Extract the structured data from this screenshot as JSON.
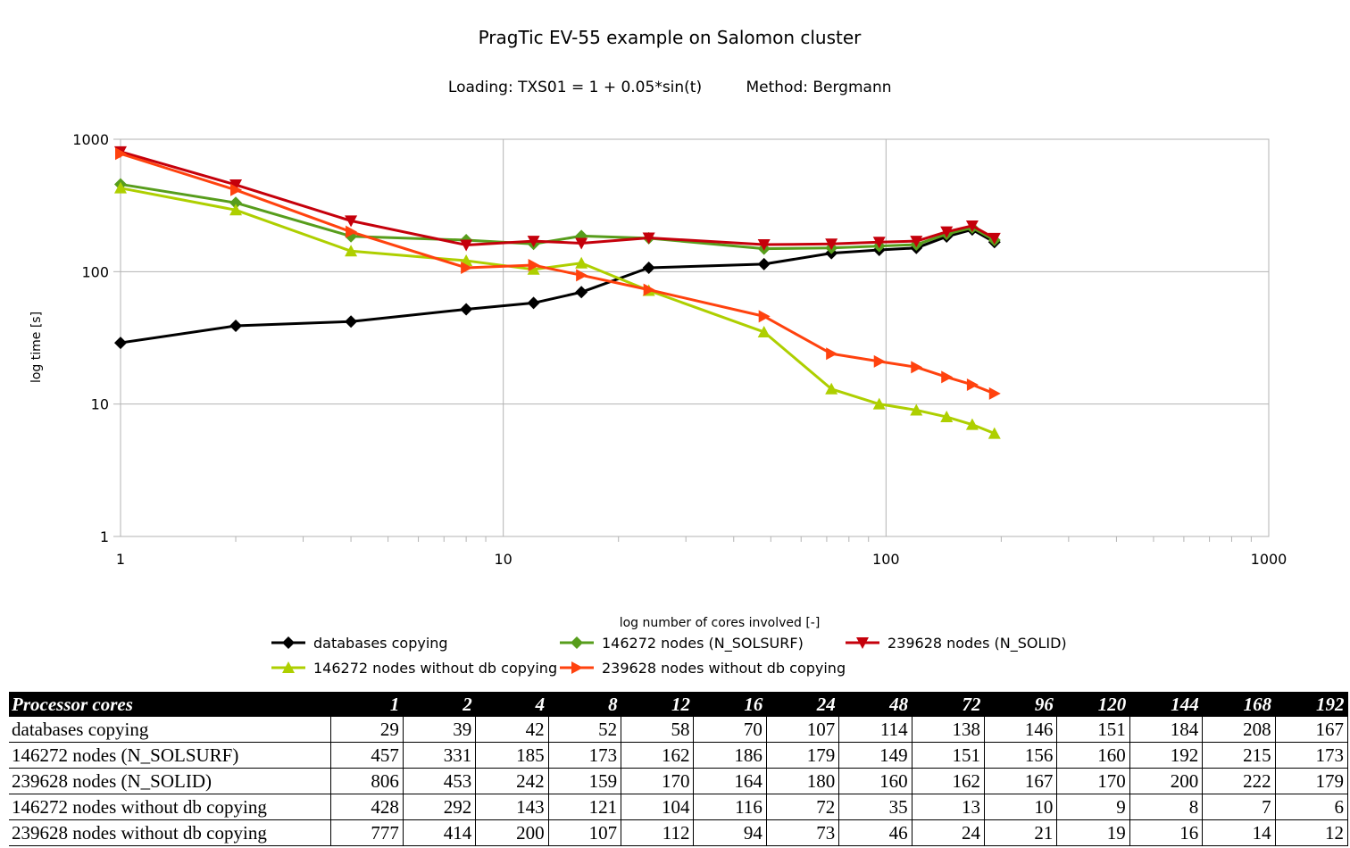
{
  "chart_data": {
    "type": "line",
    "title": "PragTic EV-55 example on Salomon cluster",
    "subtitle_loading": "Loading: TXS01 = 1 + 0.05*sin(t)",
    "subtitle_method": "Method: Bergmann",
    "xlabel": "log number of cores involved [-]",
    "ylabel": "log time [s]",
    "x_scale": "log",
    "y_scale": "log",
    "xlim": [
      1,
      1000
    ],
    "ylim": [
      1,
      1000
    ],
    "x_tick_labels": [
      "1",
      "10",
      "100",
      "1000"
    ],
    "y_tick_labels": [
      "1",
      "10",
      "100",
      "1000"
    ],
    "grid": true,
    "legend_position": "bottom",
    "x": [
      1,
      2,
      4,
      8,
      12,
      16,
      24,
      48,
      72,
      96,
      120,
      144,
      168,
      192
    ],
    "series": [
      {
        "name": "databases copying",
        "color": "#000000",
        "marker": "diamond",
        "values": [
          29,
          39,
          42,
          52,
          58,
          70,
          107,
          114,
          138,
          146,
          151,
          184,
          208,
          167
        ]
      },
      {
        "name": "146272 nodes (N_SOLSURF)",
        "color": "#579d1c",
        "marker": "diamond",
        "values": [
          457,
          331,
          185,
          173,
          162,
          186,
          179,
          149,
          151,
          156,
          160,
          192,
          215,
          173
        ]
      },
      {
        "name": "239628 nodes (N_SOLID)",
        "color": "#c5000b",
        "marker": "triangle-down",
        "values": [
          806,
          453,
          242,
          159,
          170,
          164,
          180,
          160,
          162,
          167,
          170,
          200,
          222,
          179
        ]
      },
      {
        "name": "146272 nodes without db copying",
        "color": "#aecf00",
        "marker": "triangle-up",
        "values": [
          428,
          292,
          143,
          121,
          104,
          116,
          72,
          35,
          13,
          10,
          9,
          8,
          7,
          6
        ]
      },
      {
        "name": "239628 nodes without db copying",
        "color": "#ff420e",
        "marker": "triangle-right",
        "values": [
          777,
          414,
          200,
          107,
          112,
          94,
          73,
          46,
          24,
          21,
          19,
          16,
          14,
          12
        ]
      }
    ]
  },
  "table": {
    "header_label": "Processor cores",
    "columns": [
      "1",
      "2",
      "4",
      "8",
      "12",
      "16",
      "24",
      "48",
      "72",
      "96",
      "120",
      "144",
      "168",
      "192"
    ],
    "rows": [
      {
        "label": "databases copying",
        "values": [
          "29",
          "39",
          "42",
          "52",
          "58",
          "70",
          "107",
          "114",
          "138",
          "146",
          "151",
          "184",
          "208",
          "167"
        ]
      },
      {
        "label": "146272 nodes (N_SOLSURF)",
        "values": [
          "457",
          "331",
          "185",
          "173",
          "162",
          "186",
          "179",
          "149",
          "151",
          "156",
          "160",
          "192",
          "215",
          "173"
        ]
      },
      {
        "label": "239628 nodes (N_SOLID)",
        "values": [
          "806",
          "453",
          "242",
          "159",
          "170",
          "164",
          "180",
          "160",
          "162",
          "167",
          "170",
          "200",
          "222",
          "179"
        ]
      },
      {
        "label": "146272 nodes without db copying",
        "values": [
          "428",
          "292",
          "143",
          "121",
          "104",
          "116",
          "72",
          "35",
          "13",
          "10",
          "9",
          "8",
          "7",
          "6"
        ]
      },
      {
        "label": "239628 nodes without db copying",
        "values": [
          "777",
          "414",
          "200",
          "107",
          "112",
          "94",
          "73",
          "46",
          "24",
          "21",
          "19",
          "16",
          "14",
          "12"
        ]
      }
    ]
  }
}
